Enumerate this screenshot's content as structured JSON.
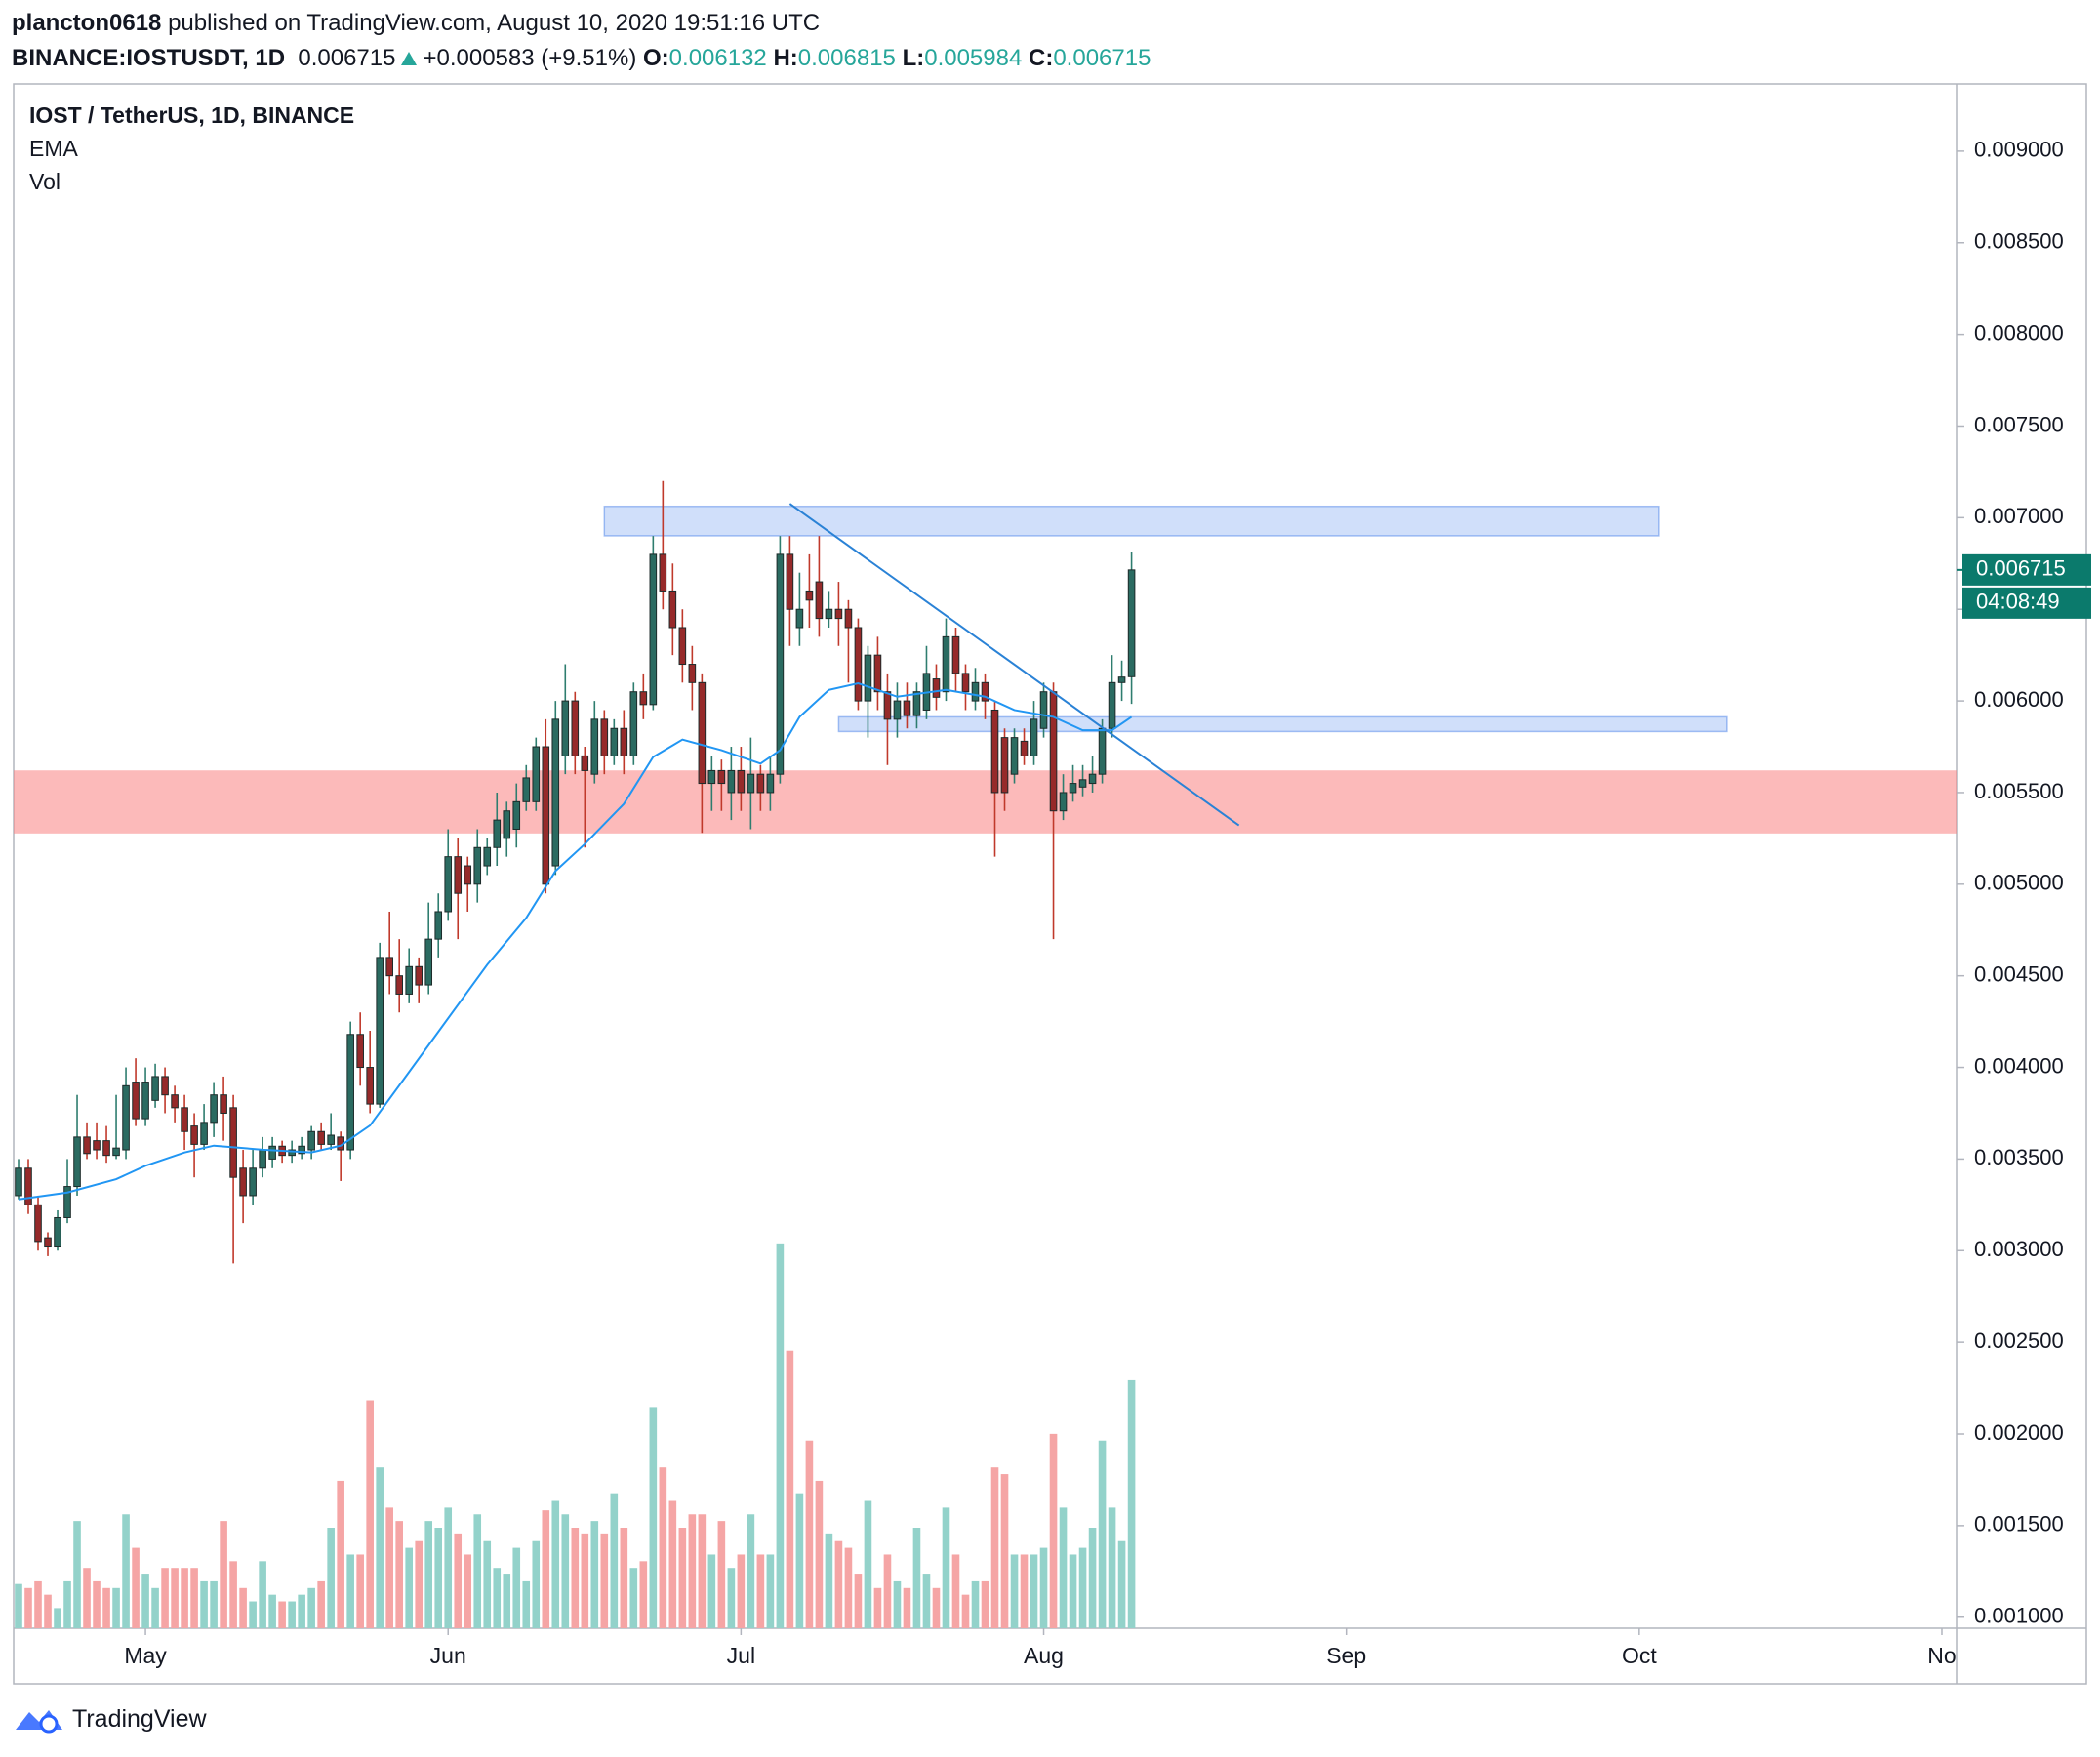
{
  "header": {
    "author": "plancton0618",
    "published": "published on TradingView.com, August 10, 2020 19:51:16 UTC",
    "symbol": "BINANCE:IOSTUSDT, 1D",
    "last": "0.006715",
    "change": "+0.000583 (+9.51%)",
    "ohlc": [
      {
        "label": "O:",
        "value": "0.006132"
      },
      {
        "label": "H:",
        "value": "0.006815"
      },
      {
        "label": "L:",
        "value": "0.005984"
      },
      {
        "label": "C:",
        "value": "0.006715"
      }
    ]
  },
  "chart_data": {
    "type": "candlestick",
    "title": "IOST / TetherUS, 1D, BINANCE",
    "x": [
      109,
      110,
      111,
      112,
      113,
      114,
      115,
      116,
      117,
      118,
      119,
      120,
      121,
      122,
      123,
      124,
      125,
      126,
      127,
      128,
      129,
      130,
      131,
      132,
      133,
      134,
      135,
      136,
      137,
      138,
      139,
      140,
      141,
      142,
      143,
      144,
      145,
      146,
      147,
      148,
      149,
      150,
      151,
      152,
      153,
      154,
      155,
      156,
      157,
      158,
      159,
      160,
      161,
      162,
      163,
      164,
      165,
      166,
      167,
      168,
      169,
      170,
      171,
      172,
      173,
      174,
      175,
      176,
      177,
      178,
      179,
      180,
      181,
      182,
      183,
      184,
      185,
      186,
      187,
      188,
      189,
      190,
      191,
      192,
      193,
      194,
      195,
      196,
      197,
      198,
      199,
      200,
      201,
      202,
      203,
      204,
      205,
      206,
      207,
      208,
      209,
      210,
      211,
      212,
      213,
      214,
      215,
      216,
      217,
      218,
      219,
      220,
      221,
      222,
      223
    ],
    "open": [
      0.0033,
      0.00345,
      0.00325,
      0.00307,
      0.00302,
      0.00318,
      0.00335,
      0.00362,
      0.0036,
      0.0036,
      0.00352,
      0.00355,
      0.00392,
      0.00372,
      0.00382,
      0.00395,
      0.00385,
      0.00378,
      0.00368,
      0.00358,
      0.0037,
      0.00385,
      0.00378,
      0.00345,
      0.0033,
      0.00345,
      0.0035,
      0.00357,
      0.00352,
      0.00353,
      0.00355,
      0.00365,
      0.00358,
      0.00362,
      0.00355,
      0.00418,
      0.004,
      0.0038,
      0.0046,
      0.0045,
      0.0044,
      0.00455,
      0.00445,
      0.0047,
      0.00485,
      0.00515,
      0.0051,
      0.005,
      0.0051,
      0.0052,
      0.00525,
      0.0053,
      0.00545,
      0.00545,
      0.00575,
      0.0051,
      0.0057,
      0.006,
      0.0057,
      0.0056,
      0.0059,
      0.0057,
      0.00585,
      0.0057,
      0.00605,
      0.00598,
      0.0068,
      0.0066,
      0.0064,
      0.0062,
      0.0061,
      0.00555,
      0.00562,
      0.0055,
      0.00562,
      0.0055,
      0.0056,
      0.0055,
      0.0056,
      0.0068,
      0.0064,
      0.0066,
      0.00665,
      0.00645,
      0.0065,
      0.0065,
      0.0064,
      0.006,
      0.00625,
      0.00605,
      0.0059,
      0.006,
      0.00592,
      0.00595,
      0.00612,
      0.00605,
      0.00635,
      0.00615,
      0.006,
      0.0061,
      0.00595,
      0.0058,
      0.0056,
      0.00578,
      0.0057,
      0.00585,
      0.00605,
      0.0054,
      0.0055,
      0.00553,
      0.00555,
      0.0056,
      0.00585,
      0.0061,
      0.006132
    ],
    "high": [
      0.0035,
      0.0035,
      0.0033,
      0.0031,
      0.00322,
      0.0035,
      0.00385,
      0.0037,
      0.0037,
      0.00368,
      0.00385,
      0.004,
      0.00405,
      0.004,
      0.00402,
      0.004,
      0.0039,
      0.00385,
      0.00375,
      0.0038,
      0.00392,
      0.00395,
      0.00385,
      0.00355,
      0.00355,
      0.00362,
      0.00362,
      0.0036,
      0.0036,
      0.00362,
      0.00368,
      0.0037,
      0.00375,
      0.00365,
      0.00425,
      0.0043,
      0.0042,
      0.00468,
      0.00485,
      0.0047,
      0.00465,
      0.0046,
      0.0049,
      0.00495,
      0.0053,
      0.00525,
      0.00515,
      0.0053,
      0.00525,
      0.0055,
      0.00545,
      0.00555,
      0.00565,
      0.0058,
      0.0059,
      0.006,
      0.0062,
      0.00605,
      0.00575,
      0.006,
      0.00595,
      0.0059,
      0.00595,
      0.0061,
      0.00615,
      0.0069,
      0.0072,
      0.00675,
      0.0065,
      0.0063,
      0.00615,
      0.0057,
      0.00568,
      0.00575,
      0.00575,
      0.0058,
      0.00565,
      0.0057,
      0.0069,
      0.0069,
      0.0067,
      0.0068,
      0.0069,
      0.0066,
      0.00665,
      0.00655,
      0.00645,
      0.0063,
      0.00635,
      0.00615,
      0.0061,
      0.0061,
      0.0061,
      0.0063,
      0.0062,
      0.00645,
      0.0064,
      0.0062,
      0.00618,
      0.00615,
      0.006,
      0.00585,
      0.00585,
      0.00585,
      0.006,
      0.0061,
      0.0061,
      0.0056,
      0.00565,
      0.00565,
      0.0057,
      0.0059,
      0.00625,
      0.00622,
      0.006815
    ],
    "low": [
      0.00328,
      0.0032,
      0.003,
      0.00297,
      0.003,
      0.00315,
      0.0033,
      0.0035,
      0.0035,
      0.00348,
      0.0035,
      0.0035,
      0.00368,
      0.00368,
      0.00378,
      0.00375,
      0.0037,
      0.00355,
      0.0034,
      0.00355,
      0.00362,
      0.0036,
      0.00293,
      0.00315,
      0.00325,
      0.0034,
      0.00345,
      0.00348,
      0.00348,
      0.0035,
      0.0035,
      0.00355,
      0.00355,
      0.00338,
      0.0035,
      0.0039,
      0.00375,
      0.00378,
      0.0044,
      0.0043,
      0.00435,
      0.00435,
      0.0044,
      0.0046,
      0.0048,
      0.0047,
      0.00485,
      0.0049,
      0.00505,
      0.0051,
      0.00515,
      0.0052,
      0.0054,
      0.0054,
      0.00495,
      0.00505,
      0.0056,
      0.0056,
      0.0052,
      0.00555,
      0.0056,
      0.00565,
      0.0056,
      0.00565,
      0.0059,
      0.00595,
      0.0065,
      0.00625,
      0.0061,
      0.00595,
      0.00528,
      0.0054,
      0.0054,
      0.00535,
      0.0054,
      0.0053,
      0.0054,
      0.0054,
      0.00555,
      0.0063,
      0.0063,
      0.0064,
      0.00635,
      0.0064,
      0.0063,
      0.0061,
      0.00595,
      0.0058,
      0.00595,
      0.00565,
      0.0058,
      0.00585,
      0.00585,
      0.0059,
      0.00595,
      0.006,
      0.00605,
      0.00595,
      0.00595,
      0.0059,
      0.00515,
      0.0054,
      0.00555,
      0.00565,
      0.00565,
      0.0058,
      0.0047,
      0.00535,
      0.00545,
      0.00548,
      0.0055,
      0.00555,
      0.0058,
      0.006,
      0.005984
    ],
    "close": [
      0.00345,
      0.00325,
      0.00305,
      0.00302,
      0.00318,
      0.00335,
      0.00362,
      0.00353,
      0.00355,
      0.00352,
      0.00356,
      0.0039,
      0.00372,
      0.00392,
      0.00395,
      0.00385,
      0.00378,
      0.00365,
      0.00358,
      0.0037,
      0.00385,
      0.00375,
      0.0034,
      0.0033,
      0.00345,
      0.00355,
      0.00357,
      0.00352,
      0.00355,
      0.00357,
      0.00365,
      0.00358,
      0.00363,
      0.00355,
      0.00418,
      0.004,
      0.0038,
      0.0046,
      0.0045,
      0.0044,
      0.00455,
      0.00445,
      0.0047,
      0.00485,
      0.00515,
      0.00495,
      0.005,
      0.0052,
      0.0052,
      0.00535,
      0.0054,
      0.00545,
      0.00558,
      0.00575,
      0.005,
      0.0059,
      0.006,
      0.0057,
      0.00562,
      0.0059,
      0.0057,
      0.00585,
      0.0057,
      0.00605,
      0.00598,
      0.0068,
      0.0066,
      0.0064,
      0.0062,
      0.0061,
      0.00555,
      0.00562,
      0.00555,
      0.00562,
      0.0055,
      0.0056,
      0.0055,
      0.0056,
      0.0068,
      0.0065,
      0.0065,
      0.00655,
      0.00645,
      0.0065,
      0.00645,
      0.0064,
      0.006,
      0.00625,
      0.00605,
      0.0059,
      0.006,
      0.00592,
      0.00605,
      0.00615,
      0.00602,
      0.00635,
      0.00615,
      0.00605,
      0.0061,
      0.006,
      0.0055,
      0.0055,
      0.0058,
      0.0057,
      0.0059,
      0.00605,
      0.0054,
      0.0055,
      0.00555,
      0.00557,
      0.0056,
      0.00585,
      0.0061,
      0.00613,
      0.006715
    ],
    "up_color": "#2b6b61",
    "down_color": "#962a2a",
    "volume": {
      "name": "Vol",
      "lim": [
        0,
        300
      ],
      "up_color": "#93d2ca",
      "down_color": "#f5a5a5",
      "values": [
        33,
        30,
        35,
        25,
        15,
        35,
        80,
        45,
        35,
        30,
        30,
        85,
        60,
        40,
        30,
        45,
        45,
        45,
        45,
        35,
        35,
        80,
        50,
        30,
        20,
        50,
        25,
        20,
        20,
        25,
        30,
        35,
        75,
        110,
        55,
        55,
        170,
        120,
        90,
        80,
        60,
        65,
        80,
        75,
        90,
        70,
        55,
        85,
        65,
        45,
        40,
        60,
        35,
        65,
        88,
        95,
        85,
        75,
        70,
        80,
        70,
        100,
        75,
        45,
        50,
        165,
        120,
        95,
        75,
        85,
        85,
        55,
        80,
        45,
        55,
        85,
        55,
        55,
        287,
        207,
        100,
        140,
        110,
        70,
        65,
        60,
        40,
        95,
        30,
        55,
        35,
        30,
        75,
        40,
        30,
        90,
        55,
        25,
        35,
        35,
        120,
        115,
        55,
        55,
        55,
        60,
        145,
        90,
        55,
        60,
        75,
        140,
        90,
        65,
        185
      ]
    },
    "ema": {
      "name": "EMA",
      "color": "#2196f3",
      "x": [
        109,
        114,
        119,
        122,
        126,
        129,
        134,
        139,
        142,
        145,
        149,
        153,
        157,
        161,
        164,
        167,
        171,
        174,
        177,
        181,
        185,
        187,
        189,
        192,
        195,
        199,
        204,
        208,
        211,
        215,
        218,
        221,
        223
      ],
      "values": [
        0.00328,
        0.003317,
        0.00339,
        0.003463,
        0.003536,
        0.003573,
        0.003551,
        0.003536,
        0.003573,
        0.003683,
        0.003975,
        0.004268,
        0.00456,
        0.004816,
        0.005072,
        0.005219,
        0.005438,
        0.005694,
        0.005789,
        0.005731,
        0.005658,
        0.005731,
        0.005913,
        0.00606,
        0.006096,
        0.006023,
        0.00606,
        0.006023,
        0.00595,
        0.005913,
        0.00584,
        0.00584,
        0.005913
      ]
    },
    "zones": [
      {
        "x": [
          169,
          277
        ],
        "y": [
          0.006901,
          0.007062
        ],
        "color": "rgba(100,150,240,0.3)"
      },
      {
        "x": [
          193,
          284
        ],
        "y": [
          0.005833,
          0.005913
        ],
        "color": "rgba(100,150,240,0.3)"
      }
    ],
    "band": {
      "y": [
        0.005277,
        0.005621
      ],
      "color": "rgba(250,130,130,0.55)"
    },
    "trendline": {
      "x": [
        188,
        234
      ],
      "y": [
        0.007076,
        0.005321
      ],
      "color": "#2a82d6"
    },
    "legend": [
      "EMA",
      "Vol"
    ],
    "last_price": {
      "value": 0.006715,
      "label": "0.006715",
      "countdown": "04:08:49",
      "color": "#0b7a6c"
    },
    "xlim": [
      108.5,
      307.5
    ],
    "xticks": [
      {
        "value": 122,
        "label": "May"
      },
      {
        "value": 153,
        "label": "Jun"
      },
      {
        "value": 183,
        "label": "Jul"
      },
      {
        "value": 214,
        "label": "Aug"
      },
      {
        "value": 245,
        "label": "Sep"
      },
      {
        "value": 275,
        "label": "Oct"
      },
      {
        "value": 306,
        "label": "No"
      }
    ],
    "ylim": [
      0.00094,
      0.009351
    ],
    "yticks": [
      {
        "value": 0.001,
        "label": "0.001000"
      },
      {
        "value": 0.0015,
        "label": "0.001500"
      },
      {
        "value": 0.002,
        "label": "0.002000"
      },
      {
        "value": 0.0025,
        "label": "0.002500"
      },
      {
        "value": 0.003,
        "label": "0.003000"
      },
      {
        "value": 0.0035,
        "label": "0.003500"
      },
      {
        "value": 0.004,
        "label": "0.004000"
      },
      {
        "value": 0.0045,
        "label": "0.004500"
      },
      {
        "value": 0.005,
        "label": "0.005000"
      },
      {
        "value": 0.0055,
        "label": "0.005500"
      },
      {
        "value": 0.006,
        "label": "0.006000"
      },
      {
        "value": 0.0065,
        "label": "0.006500"
      },
      {
        "value": 0.007,
        "label": "0.007000"
      },
      {
        "value": 0.0075,
        "label": "0.007500"
      },
      {
        "value": 0.008,
        "label": "0.008000"
      },
      {
        "value": 0.0085,
        "label": "0.008500"
      },
      {
        "value": 0.009,
        "label": "0.009000"
      }
    ]
  },
  "footer": {
    "brand": "TradingView"
  }
}
